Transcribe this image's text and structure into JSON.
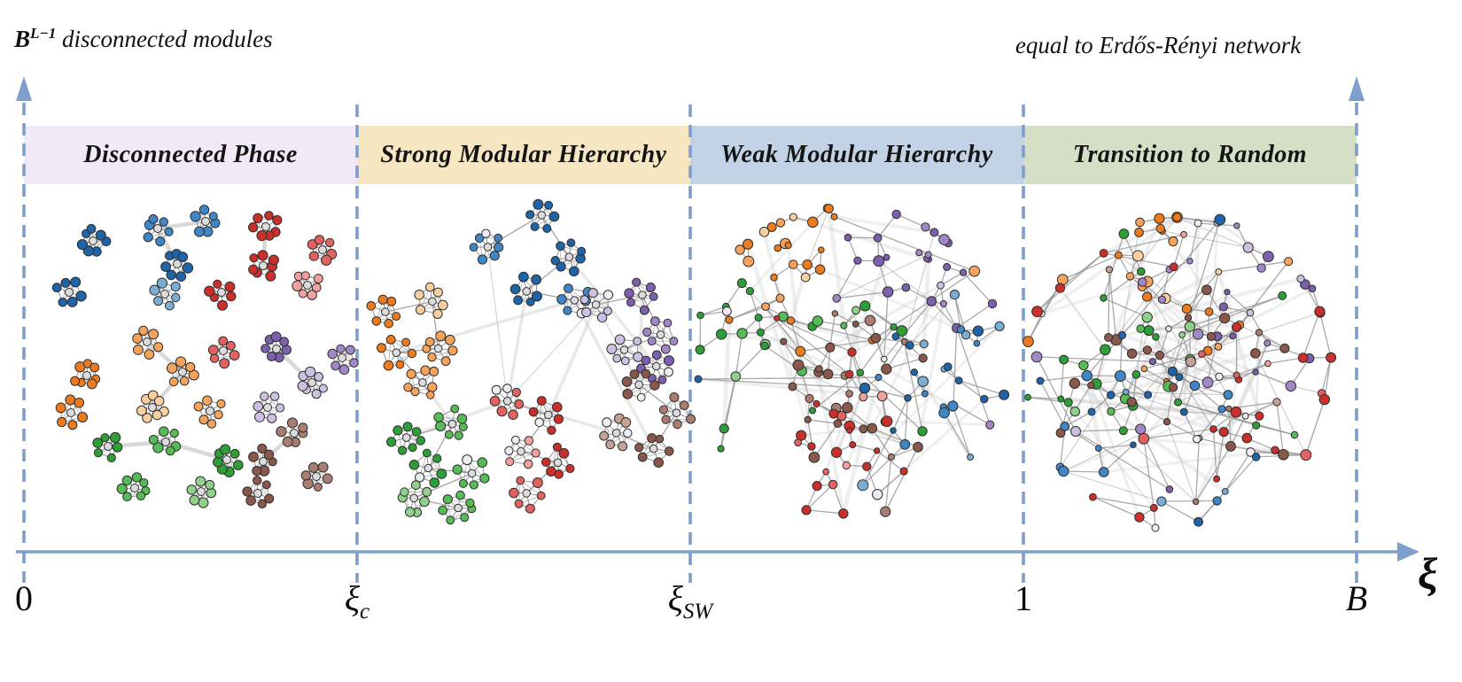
{
  "figure": {
    "y_axis_title": {
      "base": "B",
      "sup": "L−1",
      "rest": " disconnected modules"
    },
    "right_title": "equal to Erdős-Rényi network",
    "x_axis_symbol": "ξ"
  },
  "axis": {
    "color": "#7e9ecb",
    "ticks": [
      {
        "label": "0",
        "sub": "",
        "italic": false
      },
      {
        "label": "ξ",
        "sub": "c",
        "italic": true
      },
      {
        "label": "ξ",
        "sub": "SW",
        "italic": true
      },
      {
        "label": "1",
        "sub": "",
        "italic": false
      },
      {
        "label": "B",
        "sub": "",
        "italic": true
      }
    ]
  },
  "phases": [
    {
      "label": "Disconnected Phase",
      "banner_color": "#f1e9f8",
      "network": "isolated-modules"
    },
    {
      "label": "Strong Modular Hierarchy",
      "banner_color": "#f6e6c2",
      "network": "strong-modular-hierarchy"
    },
    {
      "label": "Weak Modular Hierarchy",
      "banner_color": "#c2d2e7",
      "network": "weak-modular-hierarchy"
    },
    {
      "label": "Transition to Random",
      "banner_color": "#d5dfc6",
      "network": "transition-to-random"
    }
  ],
  "network_palette": {
    "blue": [
      "#1f63a8",
      "#3e86c6",
      "#7aaed4"
    ],
    "red": [
      "#c9302c",
      "#e06361",
      "#f0a19d"
    ],
    "orange": [
      "#ec7a1e",
      "#f5a35b",
      "#f9cf9f"
    ],
    "green": [
      "#2e9e38",
      "#57bb57",
      "#90d08c"
    ],
    "purple": [
      "#7c5fad",
      "#a287c7",
      "#cec0e2"
    ],
    "brown": [
      "#8a574b",
      "#a97e70",
      "#c5a296"
    ],
    "pale": "#eeedf3",
    "hub_gray": "#dcdcdc",
    "edge_thin": "#8f8f8f",
    "edge_thick": "#d4d4d4",
    "node_stroke": "#2e2e2e"
  }
}
